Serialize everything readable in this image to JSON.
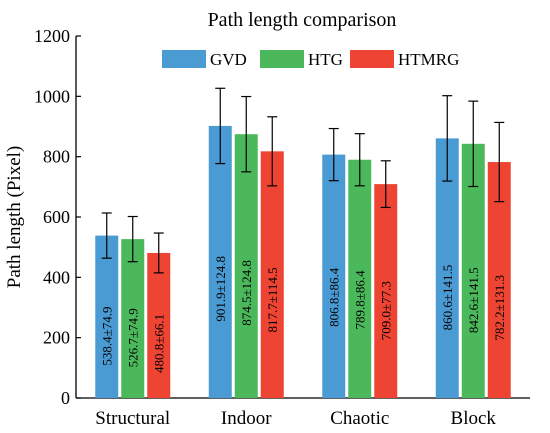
{
  "chart_data": {
    "type": "bar",
    "title": "Path length comparison",
    "xlabel": "",
    "ylabel": "Path length (Pixel)",
    "ylim": [
      0,
      1200
    ],
    "yticks": [
      0,
      200,
      400,
      600,
      800,
      1000,
      1200
    ],
    "categories": [
      "Structural",
      "Indoor",
      "Chaotic",
      "Block"
    ],
    "legend_position": "top-center",
    "series": [
      {
        "name": "GVD",
        "color": "#4a9bd4",
        "values": [
          538.4,
          901.9,
          806.8,
          860.6
        ],
        "errors": [
          74.9,
          124.8,
          86.4,
          141.5
        ],
        "labels": [
          "538.4±74.9",
          "901.9±124.8",
          "806.8±86.4",
          "860.6±141.5"
        ]
      },
      {
        "name": "HTG",
        "color": "#4cb85c",
        "values": [
          526.7,
          874.5,
          789.8,
          842.6
        ],
        "errors": [
          74.9,
          124.8,
          86.4,
          141.5
        ],
        "labels": [
          "526.7±74.9",
          "874.5±124.8",
          "789.8±86.4",
          "842.6±141.5"
        ]
      },
      {
        "name": "HTMRG",
        "color": "#ee4433",
        "values": [
          480.8,
          817.7,
          709.0,
          782.2
        ],
        "errors": [
          66.1,
          114.5,
          77.3,
          131.3
        ],
        "labels": [
          "480.8±66.1",
          "817.7±114.5",
          "709.0±77.3",
          "782.2±131.3"
        ]
      }
    ]
  }
}
